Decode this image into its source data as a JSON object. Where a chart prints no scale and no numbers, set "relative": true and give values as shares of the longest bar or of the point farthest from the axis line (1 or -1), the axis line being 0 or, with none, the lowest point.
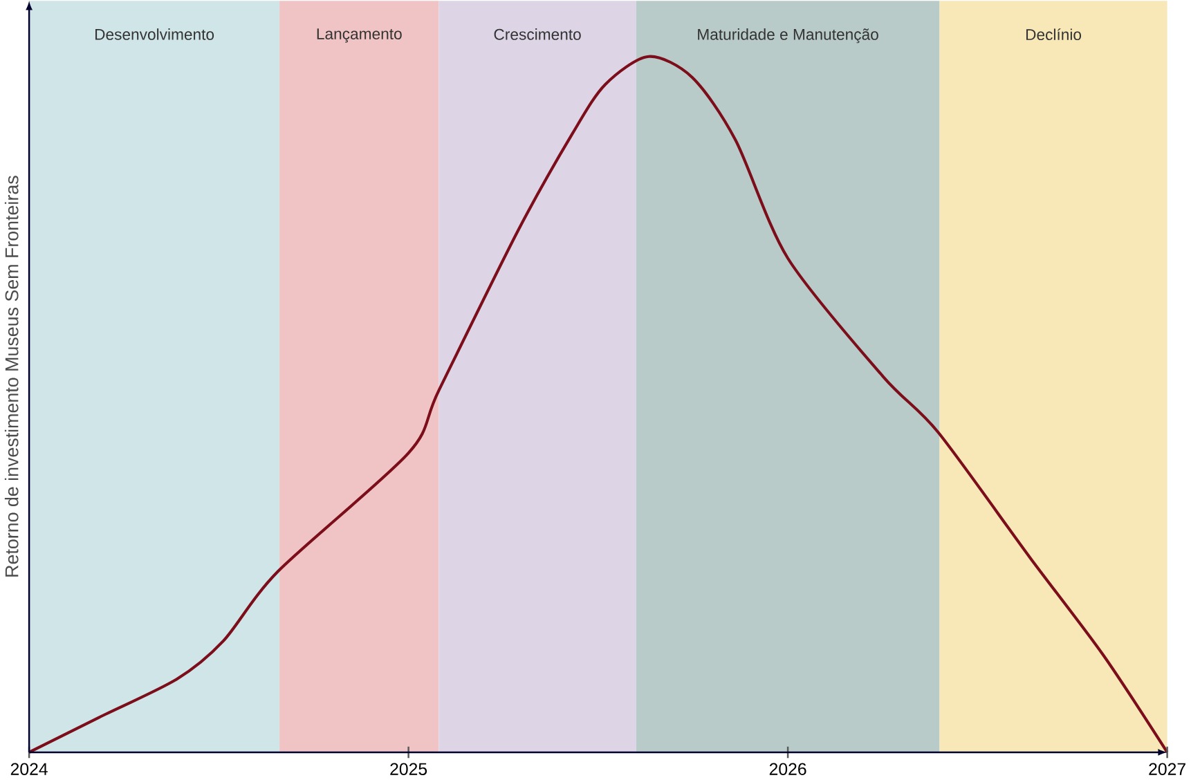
{
  "chart_data": {
    "type": "line",
    "relative": true,
    "ylabel": "Retorno de investimento Museus Sem Fronteiras",
    "x": [
      2024,
      2024.184,
      2024.389,
      2024.512,
      2024.656,
      2025,
      2025.08,
      2025.289,
      2025.433,
      2025.519,
      2025.633,
      2025.748,
      2025.862,
      2026,
      2026.251,
      2026.396,
      2026.638,
      2026.831,
      2027
    ],
    "series": [
      {
        "color": "#7b0e1a",
        "values": [
          0,
          0.05,
          0.105,
          0.16,
          0.26,
          0.43,
          0.52,
          0.75,
          0.89,
          0.96,
          1.0,
          0.97,
          0.88,
          0.71,
          0.54,
          0.46,
          0.28,
          0.14,
          0
        ]
      }
    ],
    "xlim": [
      2024,
      2027
    ],
    "xticks": [
      2024,
      2025,
      2026,
      2027
    ],
    "bands": [
      {
        "axis": "x",
        "from": 2024,
        "to": 2024.66,
        "label": "Desenvolvimento",
        "color": "#cfe5e8"
      },
      {
        "axis": "x",
        "from": 2024.66,
        "to": 2025.08,
        "label": "Lançamento",
        "color": "#f0c4c4"
      },
      {
        "axis": "x",
        "from": 2025.08,
        "to": 2025.6,
        "label": "Crescimento",
        "color": "#ddd5e6"
      },
      {
        "axis": "x",
        "from": 2025.6,
        "to": 2026.4,
        "label": "Maturidade e Manutenção",
        "color": "#b9cbc8"
      },
      {
        "axis": "x",
        "from": 2026.4,
        "to": 2027,
        "label": "Declínio",
        "color": "#f8e8b8"
      }
    ],
    "grid": false,
    "marker": "none",
    "line_style": "solid"
  }
}
